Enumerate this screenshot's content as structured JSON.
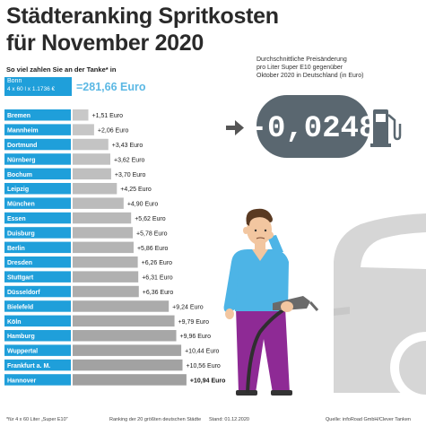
{
  "title_line1": "Städteranking Spritkosten",
  "title_line2": "für November 2020",
  "subtitle": "So viel zahlen Sie an der Tanke* in",
  "reference": {
    "city": "Bonn",
    "formula": "4 x 60 l x 1.1736 €",
    "total": "=281,66 Euro"
  },
  "change_description": [
    "Durchschnittliche Preisänderung",
    "pro Liter Super E10 gegenüber",
    "Oktober 2020 in Deutschland (in Euro)"
  ],
  "change_value": "-0,0248",
  "footer": {
    "note": "*für 4 x 60 Liter „Super E10\"",
    "ranking": "Ranking der 20 größten deutschen Städte",
    "date": "Stand: 01.12.2020",
    "source": "Quelle: infoRoad GmbH/Clever Tanken"
  },
  "colors": {
    "accent": "#1f9fda",
    "bar": "#b4b4b4",
    "car": "#d6d6d6",
    "display": "#5a6770",
    "shirt": "#4db4e6",
    "pants": "#8e2a95"
  },
  "chart_data": {
    "type": "bar",
    "orientation": "horizontal",
    "categories": [
      "Bremen",
      "Mannheim",
      "Dortmund",
      "Nürnberg",
      "Bochum",
      "Leipzig",
      "München",
      "Essen",
      "Duisburg",
      "Berlin",
      "Dresden",
      "Stuttgart",
      "Düsseldorf",
      "Bielefeld",
      "Köln",
      "Hamburg",
      "Wuppertal",
      "Frankfurt a. M.",
      "Hannover"
    ],
    "values": [
      1.51,
      2.06,
      3.43,
      3.62,
      3.7,
      4.25,
      4.9,
      5.62,
      5.78,
      5.86,
      6.26,
      6.31,
      6.36,
      9.24,
      9.79,
      9.96,
      10.44,
      10.56,
      10.94
    ],
    "value_labels": [
      "+1,51 Euro",
      "+2,06 Euro",
      "+3,43 Euro",
      "+3,62 Euro",
      "+3,70 Euro",
      "+4,25 Euro",
      "+4,90 Euro",
      "+5,62 Euro",
      "+5,78 Euro",
      "+5,86 Euro",
      "+6,26 Euro",
      "+6,31 Euro",
      "+6,36 Euro",
      "+9,24 Euro",
      "+9,79 Euro",
      "+9,96 Euro",
      "+10,44 Euro",
      "+10,56 Euro",
      "+10,94 Euro"
    ],
    "highlight_last": true
  }
}
